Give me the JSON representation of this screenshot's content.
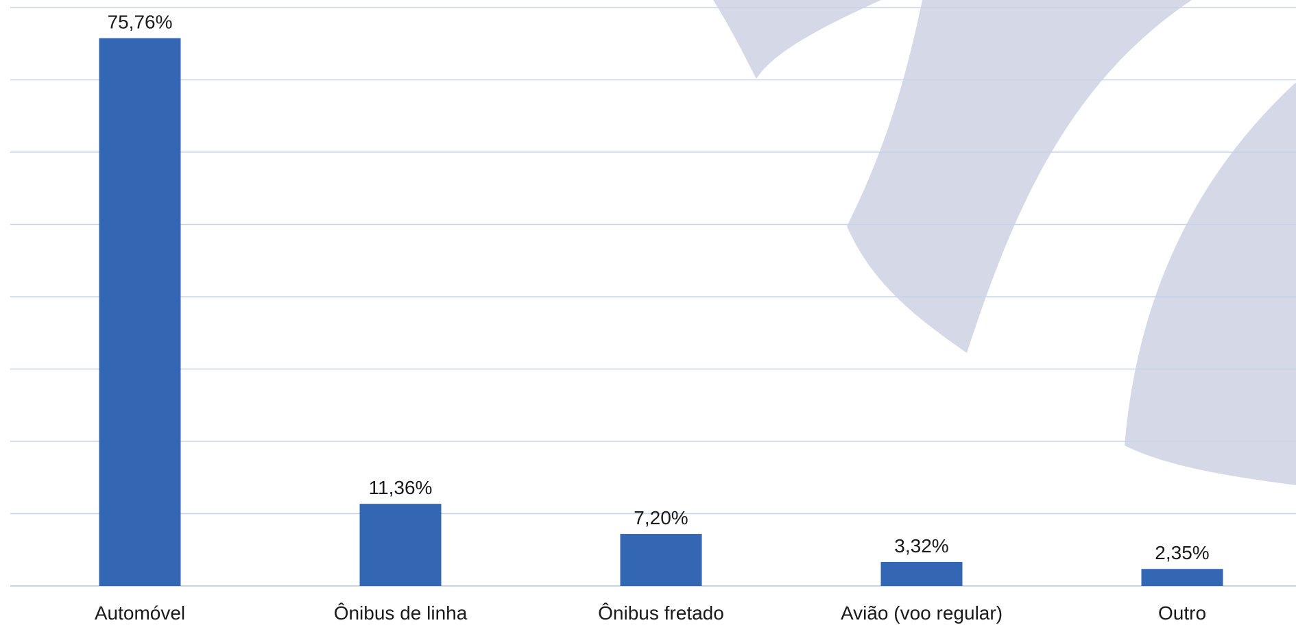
{
  "chart_data": {
    "type": "bar",
    "categories": [
      "Automóvel",
      "Ônibus de linha",
      "Ônibus fretado",
      "Avião (voo regular)",
      "Outro"
    ],
    "values": [
      75.76,
      11.36,
      7.2,
      3.32,
      2.35
    ],
    "value_labels": [
      "75,76%",
      "11,36%",
      "7,20%",
      "3,32%",
      "2,35%"
    ],
    "ylim": [
      0,
      80
    ],
    "grid": true,
    "title": "",
    "xlabel": "",
    "ylabel": ""
  },
  "colors": {
    "bar": "#3366b3",
    "grid": "#c7d3ea",
    "watermark": "#d5d9e7"
  }
}
